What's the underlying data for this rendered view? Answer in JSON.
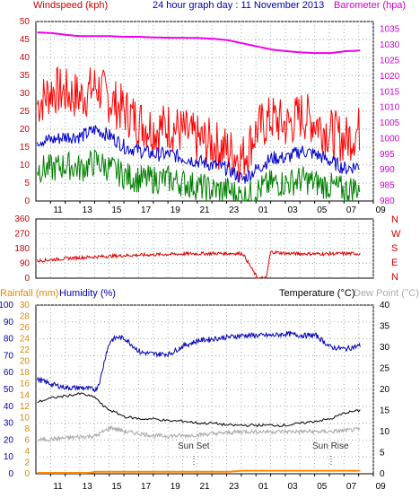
{
  "header": {
    "windspeed_label": "Windspeed (kph)",
    "graph_title": "24 hour graph day : 11 November 2013",
    "barometer_label": "Barometer (hpa)"
  },
  "bottom_header": {
    "rainfall_label": "Rainfall (mm)",
    "humidity_label": "Humidity (%)",
    "temperature_label": "Temperature (°C)",
    "dewpoint_label": "Dew Point (°C)"
  },
  "annotations": {
    "sun_set": "Sun Set",
    "sun_rise": "Sun Rise"
  },
  "compass": [
    "N",
    "W",
    "S",
    "E",
    "N"
  ],
  "colors": {
    "wind_gust": "#ff0000",
    "wind_avg": "#0000cc",
    "wind_low": "#008000",
    "barometer": "#ee00ee",
    "direction": "#dd0000",
    "humidity": "#0000bb",
    "temperature": "#000000",
    "dewpoint": "#aaaaaa",
    "rainfall": "#ff8800",
    "left_axis": "#cc0000",
    "baro_axis": "#cc00cc",
    "hum_axis": "#0000aa",
    "rain_axis": "#dd8800"
  },
  "chart_data": [
    {
      "type": "line",
      "name": "wind-barometer",
      "x_ticks": [
        "11",
        "13",
        "15",
        "17",
        "19",
        "21",
        "23",
        "01",
        "03",
        "05",
        "07",
        "09"
      ],
      "y_left_ticks": [
        0,
        5,
        10,
        15,
        20,
        25,
        30,
        35,
        40,
        45,
        50
      ],
      "y_right_ticks": [
        980,
        985,
        990,
        995,
        1000,
        1005,
        1010,
        1015,
        1020,
        1025,
        1030,
        1035
      ],
      "ylim_left": [
        0,
        50
      ],
      "ylim_right": [
        980,
        1037.5
      ],
      "series": [
        {
          "role": "gust",
          "keys": [
            [
              0,
              27
            ],
            [
              1,
              31
            ],
            [
              2,
              30
            ],
            [
              3,
              29
            ],
            [
              4,
              32
            ],
            [
              5,
              28
            ],
            [
              6,
              25
            ],
            [
              7,
              22
            ],
            [
              8,
              20
            ],
            [
              9,
              21
            ],
            [
              10,
              19
            ],
            [
              11,
              17
            ],
            [
              12,
              16
            ],
            [
              13,
              14
            ],
            [
              14,
              12
            ],
            [
              15,
              20
            ],
            [
              16,
              23
            ],
            [
              17,
              21
            ],
            [
              18,
              24
            ],
            [
              19,
              22
            ],
            [
              20,
              19
            ],
            [
              21,
              17
            ],
            [
              22,
              20
            ]
          ],
          "jitter": 7
        },
        {
          "role": "avg",
          "keys": [
            [
              0,
              17
            ],
            [
              1,
              17
            ],
            [
              2,
              18
            ],
            [
              3,
              18
            ],
            [
              4,
              20
            ],
            [
              5,
              18
            ],
            [
              6,
              15
            ],
            [
              7,
              14
            ],
            [
              8,
              13
            ],
            [
              9,
              13
            ],
            [
              10,
              12
            ],
            [
              11,
              11
            ],
            [
              12,
              10
            ],
            [
              13,
              9
            ],
            [
              14,
              6
            ],
            [
              15,
              9
            ],
            [
              16,
              12
            ],
            [
              17,
              12
            ],
            [
              18,
              14
            ],
            [
              19,
              13
            ],
            [
              20,
              11
            ],
            [
              21,
              9
            ],
            [
              22,
              10
            ]
          ],
          "jitter": 2
        },
        {
          "role": "low",
          "keys": [
            [
              0,
              9
            ],
            [
              1,
              9
            ],
            [
              2,
              10
            ],
            [
              3,
              9
            ],
            [
              4,
              11
            ],
            [
              5,
              9
            ],
            [
              6,
              7
            ],
            [
              7,
              6
            ],
            [
              8,
              6
            ],
            [
              9,
              6
            ],
            [
              10,
              5
            ],
            [
              11,
              4
            ],
            [
              12,
              3
            ],
            [
              13,
              3
            ],
            [
              14,
              1
            ],
            [
              15,
              3
            ],
            [
              16,
              5
            ],
            [
              17,
              5
            ],
            [
              18,
              6
            ],
            [
              19,
              5
            ],
            [
              20,
              4
            ],
            [
              21,
              3
            ],
            [
              22,
              4
            ]
          ],
          "jitter": 4
        },
        {
          "role": "barometer",
          "keys": [
            [
              0,
              1034
            ],
            [
              1,
              1033.8
            ],
            [
              2,
              1033.2
            ],
            [
              3,
              1032.8
            ],
            [
              4,
              1032.8
            ],
            [
              5,
              1032.8
            ],
            [
              6,
              1032.6
            ],
            [
              7,
              1032.6
            ],
            [
              8,
              1032.4
            ],
            [
              9,
              1032.3
            ],
            [
              10,
              1032.3
            ],
            [
              11,
              1032.2
            ],
            [
              12,
              1032.0
            ],
            [
              13,
              1031.5
            ],
            [
              14,
              1030.5
            ],
            [
              15,
              1029.5
            ],
            [
              16,
              1028.5
            ],
            [
              17,
              1028.0
            ],
            [
              18,
              1027.6
            ],
            [
              19,
              1027.4
            ],
            [
              20,
              1027.4
            ],
            [
              21,
              1028.0
            ],
            [
              22,
              1028.2
            ]
          ]
        }
      ]
    },
    {
      "type": "line",
      "name": "wind-direction",
      "y_ticks": [
        0,
        90,
        180,
        270,
        360
      ],
      "ylim": [
        0,
        360
      ],
      "series": [
        {
          "role": "direction",
          "keys": [
            [
              0,
              105
            ],
            [
              2,
              120
            ],
            [
              4,
              130
            ],
            [
              6,
              138
            ],
            [
              8,
              143
            ],
            [
              10,
              148
            ],
            [
              12,
              150
            ],
            [
              14,
              150
            ],
            [
              15,
              0
            ],
            [
              15.6,
              0
            ],
            [
              15.9,
              160
            ],
            [
              17,
              150
            ],
            [
              19,
              148
            ],
            [
              22,
              150
            ]
          ],
          "jitter": 10
        }
      ]
    },
    {
      "type": "line",
      "name": "temperature-humidity-rain",
      "y_humidity_ticks": [
        0,
        10,
        20,
        30,
        40,
        50,
        60,
        70,
        80,
        90,
        100
      ],
      "y_rain_ticks": [
        0,
        2,
        4,
        6,
        8,
        10,
        12,
        14,
        16,
        18,
        20,
        22,
        24,
        26,
        28,
        30
      ],
      "y_temp_ticks": [
        0,
        5,
        10,
        15,
        20,
        25,
        30,
        35,
        40
      ],
      "ylim_humidity": [
        0,
        100
      ],
      "ylim_temp": [
        0,
        40
      ],
      "series": [
        {
          "role": "humidity",
          "keys": [
            [
              0,
              56
            ],
            [
              1,
              53
            ],
            [
              2,
              51
            ],
            [
              3,
              51
            ],
            [
              4,
              50
            ],
            [
              4.3,
              56
            ],
            [
              4.7,
              72
            ],
            [
              5,
              79
            ],
            [
              5.5,
              81
            ],
            [
              6,
              80
            ],
            [
              7,
              72
            ],
            [
              8,
              71
            ],
            [
              9,
              71
            ],
            [
              10,
              76
            ],
            [
              11,
              79
            ],
            [
              12,
              80
            ],
            [
              13,
              81
            ],
            [
              14,
              82
            ],
            [
              15,
              82
            ],
            [
              16,
              82
            ],
            [
              17,
              83
            ],
            [
              18,
              82
            ],
            [
              19,
              82
            ],
            [
              20,
              75
            ],
            [
              21,
              74
            ],
            [
              22,
              76
            ]
          ],
          "jitter": 1.5
        },
        {
          "role": "temperature",
          "keys": [
            [
              0,
              17
            ],
            [
              1,
              18
            ],
            [
              2,
              18.5
            ],
            [
              3,
              19
            ],
            [
              4,
              18
            ],
            [
              4.5,
              16
            ],
            [
              5,
              15
            ],
            [
              6,
              13.5
            ],
            [
              7,
              13
            ],
            [
              8,
              13
            ],
            [
              9,
              12.5
            ],
            [
              10,
              12.5
            ],
            [
              11,
              12
            ],
            [
              12,
              12
            ],
            [
              13,
              11.5
            ],
            [
              14,
              11.5
            ],
            [
              15,
              11.5
            ],
            [
              16,
              11.5
            ],
            [
              17,
              11.5
            ],
            [
              18,
              12
            ],
            [
              19,
              12.5
            ],
            [
              20,
              13
            ],
            [
              21,
              14.5
            ],
            [
              22,
              15
            ]
          ],
          "jitter": 0.3
        },
        {
          "role": "dewpoint",
          "keys": [
            [
              0,
              8
            ],
            [
              2,
              8.5
            ],
            [
              4,
              9
            ],
            [
              4.5,
              10
            ],
            [
              5,
              11
            ],
            [
              6,
              10
            ],
            [
              7,
              9.5
            ],
            [
              8,
              9
            ],
            [
              10,
              9
            ],
            [
              12,
              9.5
            ],
            [
              14,
              10
            ],
            [
              16,
              10
            ],
            [
              18,
              10
            ],
            [
              20,
              10
            ],
            [
              22,
              10.5
            ]
          ],
          "jitter": 0.5
        },
        {
          "role": "rainfall",
          "keys": [
            [
              0,
              0
            ],
            [
              3.5,
              0
            ],
            [
              4,
              0.2
            ],
            [
              13,
              0.2
            ],
            [
              14,
              0.4
            ],
            [
              22,
              0.4
            ]
          ]
        }
      ]
    }
  ]
}
